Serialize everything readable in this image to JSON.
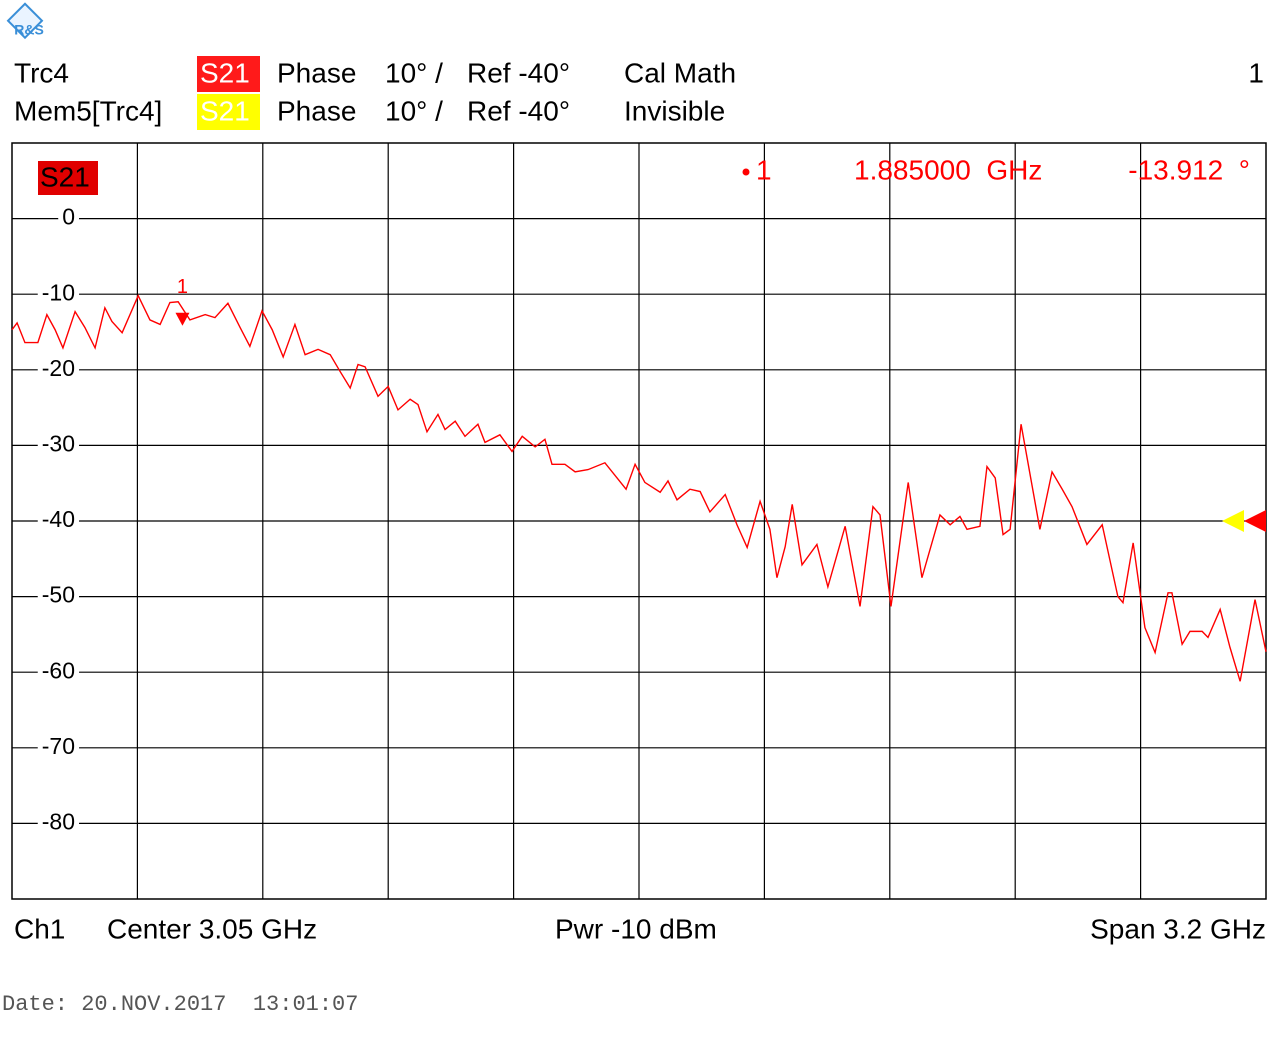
{
  "header": {
    "trace": "Trc4",
    "param": "S21",
    "format": "Phase",
    "scale": "10° /",
    "ref": "Ref -40°",
    "status": "Cal Math",
    "channel_num": "1",
    "memory": "Mem5[Trc4]",
    "memory_param": "S21",
    "memory_format": "Phase",
    "memory_scale": "10° /",
    "memory_ref": "Ref -40°",
    "memory_status": "Invisible"
  },
  "chart_data": {
    "type": "line",
    "badge": "S21",
    "x": [
      1.45,
      1.463,
      1.483,
      1.516,
      1.539,
      1.56,
      1.58,
      1.611,
      1.636,
      1.662,
      1.687,
      1.705,
      1.731,
      1.772,
      1.802,
      1.828,
      1.853,
      1.874,
      1.904,
      1.943,
      1.968,
      2.001,
      2.032,
      2.057,
      2.088,
      2.114,
      2.142,
      2.172,
      2.198,
      2.231,
      2.262,
      2.287,
      2.313,
      2.333,
      2.351,
      2.384,
      2.41,
      2.435,
      2.466,
      2.486,
      2.509,
      2.537,
      2.555,
      2.581,
      2.606,
      2.639,
      2.657,
      2.695,
      2.726,
      2.752,
      2.785,
      2.81,
      2.828,
      2.861,
      2.887,
      2.92,
      2.963,
      2.994,
      3.017,
      3.04,
      3.065,
      3.104,
      3.124,
      3.147,
      3.18,
      3.206,
      3.231,
      3.27,
      3.3,
      3.326,
      3.359,
      3.384,
      3.402,
      3.423,
      3.441,
      3.466,
      3.504,
      3.532,
      3.576,
      3.614,
      3.647,
      3.665,
      3.693,
      3.737,
      3.772,
      3.818,
      3.844,
      3.869,
      3.887,
      3.92,
      3.938,
      3.959,
      3.979,
      3.997,
      4.025,
      4.073,
      4.104,
      4.13,
      4.155,
      4.193,
      4.232,
      4.272,
      4.285,
      4.311,
      4.341,
      4.367,
      4.4,
      4.41,
      4.436,
      4.456,
      4.487,
      4.502,
      4.533,
      4.558,
      4.584,
      4.622,
      4.65
    ],
    "series": [
      {
        "name": "S21",
        "color": "#ff0000",
        "values": [
          -14.7,
          -13.8,
          -16.4,
          -16.4,
          -12.7,
          -14.7,
          -17.1,
          -12.3,
          -14.4,
          -17.1,
          -11.8,
          -13.6,
          -15.1,
          -10.2,
          -13.4,
          -14.0,
          -11.1,
          -11.0,
          -13.4,
          -12.7,
          -13.1,
          -11.2,
          -14.4,
          -16.9,
          -12.2,
          -14.7,
          -18.3,
          -14.0,
          -18.0,
          -17.3,
          -18.0,
          -20.2,
          -22.4,
          -19.3,
          -19.6,
          -23.5,
          -22.2,
          -25.3,
          -23.9,
          -24.6,
          -28.2,
          -25.9,
          -27.9,
          -26.8,
          -28.8,
          -27.2,
          -29.6,
          -28.6,
          -30.8,
          -28.8,
          -30.2,
          -29.2,
          -32.5,
          -32.5,
          -33.5,
          -33.2,
          -32.3,
          -34.3,
          -35.8,
          -32.5,
          -34.9,
          -36.2,
          -34.7,
          -37.2,
          -35.8,
          -36.1,
          -38.8,
          -36.5,
          -40.5,
          -43.5,
          -37.4,
          -41.1,
          -47.5,
          -43.4,
          -37.8,
          -45.8,
          -43.1,
          -48.7,
          -40.7,
          -51.3,
          -38.1,
          -39.2,
          -51.3,
          -34.9,
          -47.5,
          -39.2,
          -40.5,
          -39.4,
          -41.1,
          -40.7,
          -32.8,
          -34.3,
          -41.8,
          -41.1,
          -27.2,
          -41.1,
          -33.5,
          -35.8,
          -38.1,
          -43.1,
          -40.5,
          -50.0,
          -50.8,
          -42.9,
          -54.1,
          -57.4,
          -49.5,
          -49.5,
          -56.3,
          -54.6,
          -54.6,
          -55.4,
          -51.7,
          -56.7,
          -61.2,
          -50.4,
          -57.3
        ]
      }
    ],
    "xlim": [
      1.45,
      4.65
    ],
    "ylim": [
      -90,
      10
    ],
    "yticks": [
      0,
      -10,
      -20,
      -30,
      -40,
      -50,
      -60,
      -70,
      -80
    ],
    "grid": true,
    "ref_level": -40,
    "marker": {
      "name": "1",
      "x": 1.885,
      "y": -13.912,
      "x_label": "1.885000  GHz",
      "y_label": "-13.912  °"
    }
  },
  "footer": {
    "channel": "Ch1",
    "center": "Center  3.05 GHz",
    "power": "Pwr  -10 dBm",
    "span": "Span  3.2 GHz",
    "date": "Date: 20.NOV.2017  13:01:07"
  }
}
